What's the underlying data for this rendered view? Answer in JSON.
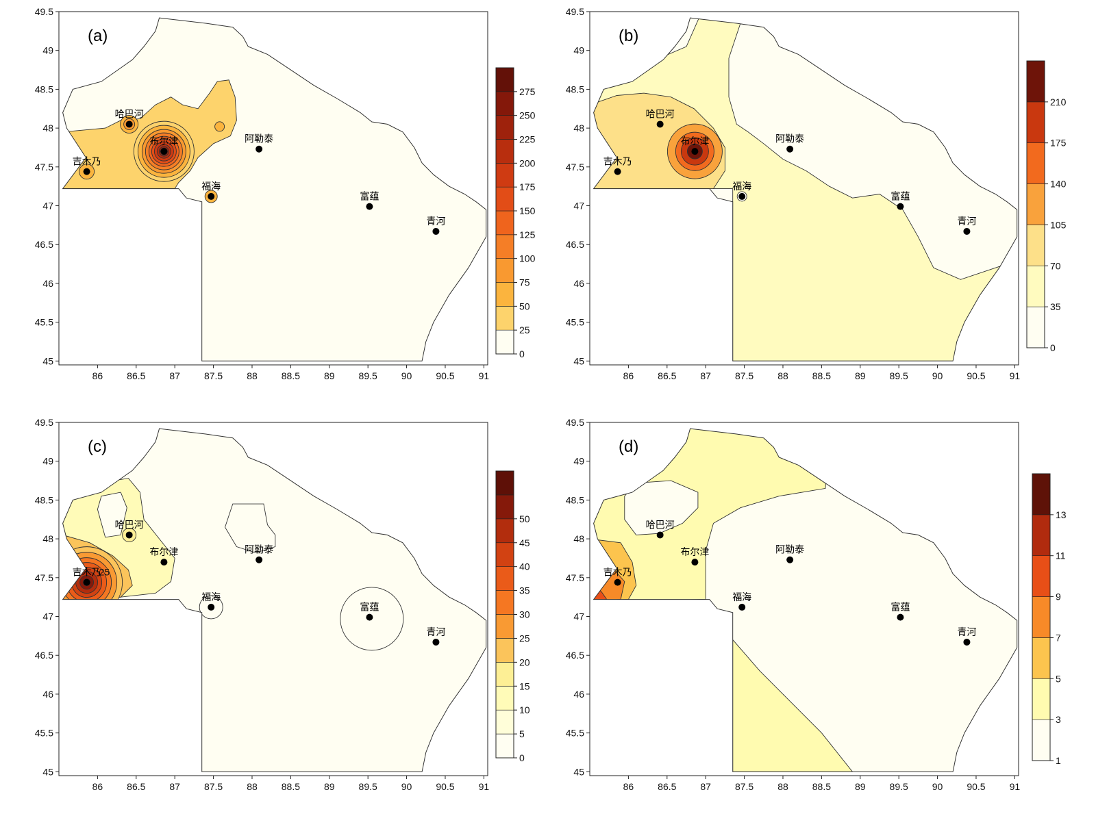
{
  "map": {
    "x_ticks": [
      "86",
      "86.5",
      "87",
      "87.5",
      "88",
      "88.5",
      "89",
      "89.5",
      "90",
      "90.5",
      "91"
    ],
    "y_ticks": [
      "45",
      "45.5",
      "46",
      "46.5",
      "47",
      "47.5",
      "48",
      "48.5",
      "49",
      "49.5"
    ],
    "xlim": [
      85.5,
      91.05
    ],
    "ylim": [
      44.95,
      49.5
    ]
  },
  "stations": [
    {
      "id": "jimunai",
      "name": "吉木乃",
      "lon": 85.86,
      "lat": 47.44
    },
    {
      "id": "habahe",
      "name": "哈巴河",
      "lon": 86.41,
      "lat": 48.05
    },
    {
      "id": "burqin",
      "name": "布尔津",
      "lon": 86.86,
      "lat": 47.7
    },
    {
      "id": "aletai",
      "name": "阿勒泰",
      "lon": 88.09,
      "lat": 47.73
    },
    {
      "id": "fuhai",
      "name": "福海",
      "lon": 87.47,
      "lat": 47.12
    },
    {
      "id": "fuyun",
      "name": "富蕴",
      "lon": 89.52,
      "lat": 46.99
    },
    {
      "id": "qinghe",
      "name": "青河",
      "lon": 90.38,
      "lat": 46.67
    }
  ],
  "panels": [
    {
      "id": "a",
      "label": "(a)",
      "colorbar": {
        "ticks": [
          "0",
          "25",
          "50",
          "75",
          "100",
          "125",
          "150",
          "175",
          "200",
          "225",
          "250",
          "275"
        ],
        "colors": [
          "#fffef2",
          "#fdd36c",
          "#fbb43e",
          "#f99930",
          "#f57e26",
          "#ef641d",
          "#e24d17",
          "#cf3b12",
          "#b82e0e",
          "#9e220c",
          "#84180a",
          "#631108"
        ]
      },
      "contour_label": ""
    },
    {
      "id": "b",
      "label": "(b)",
      "colorbar": {
        "ticks": [
          "0",
          "35",
          "70",
          "105",
          "140",
          "175",
          "210"
        ],
        "colors": [
          "#fffef2",
          "#fffbbf",
          "#fde089",
          "#f9a23c",
          "#f26a1e",
          "#c9380f",
          "#6e1409"
        ]
      },
      "contour_label": ""
    },
    {
      "id": "c",
      "label": "(c)",
      "colorbar": {
        "ticks": [
          "0",
          "5",
          "10",
          "15",
          "20",
          "25",
          "30",
          "35",
          "40",
          "45",
          "50"
        ],
        "colors": [
          "#fffef2",
          "#fffed9",
          "#fffbb8",
          "#fdef95",
          "#fbc45b",
          "#f99a33",
          "#f57722",
          "#ea5b19",
          "#d24212",
          "#b22d0d",
          "#85190a",
          "#5e1007"
        ]
      },
      "contour_label": "25"
    },
    {
      "id": "d",
      "label": "(d)",
      "colorbar": {
        "ticks": [
          "1",
          "3",
          "5",
          "7",
          "9",
          "11",
          "13"
        ],
        "colors": [
          "#fffef2",
          "#fffbb0",
          "#fcc44e",
          "#f78a28",
          "#e84f17",
          "#b12b0e",
          "#5e1208"
        ]
      },
      "contour_label": ""
    }
  ]
}
